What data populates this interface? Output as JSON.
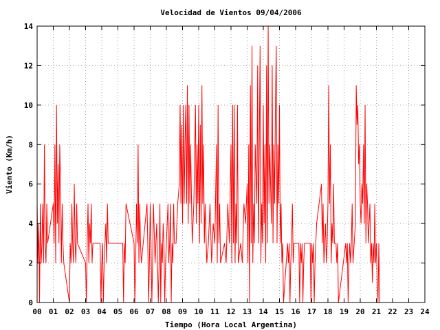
{
  "chart_data": {
    "type": "line",
    "title": "Velocidad de Vientos 09/04/2006",
    "xlabel": "Tiempo (Hora Local Argentina)",
    "ylabel": "Viento (Km/h)",
    "xlim": [
      0,
      24
    ],
    "ylim": [
      0,
      14
    ],
    "x_ticks": [
      "00",
      "01",
      "02",
      "03",
      "04",
      "05",
      "06",
      "07",
      "08",
      "09",
      "10",
      "11",
      "12",
      "13",
      "14",
      "15",
      "16",
      "17",
      "18",
      "19",
      "20",
      "21",
      "22",
      "23",
      "24"
    ],
    "y_ticks": [
      0,
      2,
      4,
      6,
      8,
      10,
      12,
      14
    ],
    "grid": true,
    "series": [
      {
        "color": "#ff0000",
        "points": [
          [
            0.0,
            5
          ],
          [
            0.05,
            2
          ],
          [
            0.1,
            4
          ],
          [
            0.15,
            0
          ],
          [
            0.2,
            5
          ],
          [
            0.25,
            2
          ],
          [
            0.3,
            3
          ],
          [
            0.35,
            5
          ],
          [
            0.4,
            2
          ],
          [
            0.45,
            8
          ],
          [
            0.5,
            3
          ],
          [
            0.55,
            2
          ],
          [
            0.6,
            5
          ],
          [
            0.65,
            3
          ],
          [
            1.0,
            5
          ],
          [
            1.05,
            3
          ],
          [
            1.1,
            8
          ],
          [
            1.15,
            2
          ],
          [
            1.2,
            10
          ],
          [
            1.25,
            4
          ],
          [
            1.3,
            7
          ],
          [
            1.35,
            3
          ],
          [
            1.4,
            8
          ],
          [
            1.45,
            6
          ],
          [
            1.5,
            2
          ],
          [
            1.55,
            5
          ],
          [
            1.6,
            3
          ],
          [
            1.65,
            2
          ],
          [
            2.0,
            0
          ],
          [
            2.05,
            3
          ],
          [
            2.1,
            2
          ],
          [
            2.15,
            5
          ],
          [
            2.2,
            3
          ],
          [
            2.25,
            2
          ],
          [
            2.3,
            6
          ],
          [
            2.35,
            3
          ],
          [
            2.4,
            2
          ],
          [
            2.45,
            5
          ],
          [
            2.5,
            3
          ],
          [
            3.0,
            2
          ],
          [
            3.05,
            0
          ],
          [
            3.1,
            3
          ],
          [
            3.15,
            5
          ],
          [
            3.2,
            2
          ],
          [
            3.25,
            4
          ],
          [
            3.3,
            3
          ],
          [
            3.35,
            5
          ],
          [
            3.4,
            2
          ],
          [
            3.45,
            3
          ],
          [
            3.9,
            3
          ],
          [
            3.95,
            0
          ],
          [
            4.0,
            2
          ],
          [
            4.05,
            3
          ],
          [
            4.1,
            0
          ],
          [
            4.15,
            2
          ],
          [
            4.2,
            3
          ],
          [
            4.25,
            4
          ],
          [
            4.3,
            2
          ],
          [
            4.35,
            5
          ],
          [
            4.4,
            3
          ],
          [
            5.3,
            3
          ],
          [
            5.35,
            0
          ],
          [
            5.4,
            3
          ],
          [
            5.45,
            2
          ],
          [
            5.5,
            5
          ],
          [
            6.0,
            3
          ],
          [
            6.05,
            0
          ],
          [
            6.1,
            2
          ],
          [
            6.15,
            5
          ],
          [
            6.2,
            3
          ],
          [
            6.25,
            8
          ],
          [
            6.3,
            2
          ],
          [
            6.35,
            5
          ],
          [
            6.4,
            3
          ],
          [
            6.45,
            2
          ],
          [
            6.8,
            5
          ],
          [
            6.85,
            3
          ],
          [
            6.9,
            0
          ],
          [
            6.95,
            2
          ],
          [
            7.0,
            5
          ],
          [
            7.05,
            3
          ],
          [
            7.1,
            0
          ],
          [
            7.15,
            2
          ],
          [
            7.2,
            5
          ],
          [
            7.3,
            2
          ],
          [
            7.4,
            4
          ],
          [
            7.5,
            0
          ],
          [
            7.55,
            2
          ],
          [
            7.6,
            5
          ],
          [
            7.65,
            0
          ],
          [
            7.7,
            3
          ],
          [
            7.75,
            2
          ],
          [
            7.8,
            4
          ],
          [
            7.85,
            3
          ],
          [
            7.9,
            0
          ],
          [
            7.95,
            2
          ],
          [
            8.0,
            3
          ],
          [
            8.1,
            5
          ],
          [
            8.15,
            2
          ],
          [
            8.2,
            3
          ],
          [
            8.25,
            5
          ],
          [
            8.3,
            0
          ],
          [
            8.35,
            3
          ],
          [
            8.4,
            2
          ],
          [
            8.45,
            5
          ],
          [
            8.5,
            3
          ],
          [
            8.6,
            3
          ],
          [
            8.7,
            5
          ],
          [
            8.8,
            6
          ],
          [
            8.85,
            10
          ],
          [
            8.9,
            5
          ],
          [
            8.95,
            9
          ],
          [
            9.0,
            4
          ],
          [
            9.05,
            10
          ],
          [
            9.1,
            5
          ],
          [
            9.15,
            8
          ],
          [
            9.2,
            10
          ],
          [
            9.25,
            5
          ],
          [
            9.3,
            11
          ],
          [
            9.35,
            4
          ],
          [
            9.4,
            10
          ],
          [
            9.45,
            5
          ],
          [
            9.5,
            8
          ],
          [
            9.6,
            3
          ],
          [
            9.7,
            5
          ],
          [
            9.8,
            10
          ],
          [
            9.85,
            4
          ],
          [
            9.9,
            8
          ],
          [
            9.95,
            5
          ],
          [
            10.0,
            10
          ],
          [
            10.05,
            3
          ],
          [
            10.1,
            9
          ],
          [
            10.15,
            4
          ],
          [
            10.2,
            11
          ],
          [
            10.25,
            5
          ],
          [
            10.3,
            8
          ],
          [
            10.35,
            3
          ],
          [
            10.4,
            5
          ],
          [
            10.5,
            2
          ],
          [
            10.6,
            3
          ],
          [
            10.7,
            5
          ],
          [
            10.8,
            2
          ],
          [
            10.9,
            4
          ],
          [
            11.0,
            3
          ],
          [
            11.1,
            8
          ],
          [
            11.15,
            2
          ],
          [
            11.2,
            10
          ],
          [
            11.25,
            3
          ],
          [
            11.3,
            5
          ],
          [
            11.35,
            2
          ],
          [
            11.6,
            3
          ],
          [
            11.7,
            2
          ],
          [
            11.8,
            5
          ],
          [
            11.9,
            3
          ],
          [
            12.0,
            8
          ],
          [
            12.05,
            2
          ],
          [
            12.1,
            10
          ],
          [
            12.15,
            3
          ],
          [
            12.2,
            10
          ],
          [
            12.25,
            2
          ],
          [
            12.3,
            5
          ],
          [
            12.35,
            3
          ],
          [
            12.4,
            10
          ],
          [
            12.45,
            2
          ],
          [
            12.6,
            3
          ],
          [
            12.7,
            2
          ],
          [
            12.8,
            5
          ],
          [
            12.9,
            4
          ],
          [
            13.0,
            6
          ],
          [
            13.05,
            2
          ],
          [
            13.1,
            8
          ],
          [
            13.15,
            0
          ],
          [
            13.2,
            11
          ],
          [
            13.25,
            3
          ],
          [
            13.3,
            13
          ],
          [
            13.35,
            2
          ],
          [
            13.4,
            5
          ],
          [
            13.45,
            3
          ],
          [
            13.5,
            8
          ],
          [
            13.6,
            5
          ],
          [
            13.65,
            12
          ],
          [
            13.7,
            3
          ],
          [
            13.75,
            8
          ],
          [
            13.8,
            13
          ],
          [
            13.85,
            2
          ],
          [
            13.9,
            5
          ],
          [
            13.95,
            3
          ],
          [
            14.0,
            10
          ],
          [
            14.05,
            4
          ],
          [
            14.1,
            8
          ],
          [
            14.15,
            2
          ],
          [
            14.2,
            12
          ],
          [
            14.25,
            3
          ],
          [
            14.3,
            14
          ],
          [
            14.35,
            5
          ],
          [
            14.4,
            8
          ],
          [
            14.5,
            4
          ],
          [
            14.55,
            12
          ],
          [
            14.6,
            3
          ],
          [
            14.65,
            8
          ],
          [
            14.7,
            5
          ],
          [
            14.75,
            10
          ],
          [
            14.8,
            13
          ],
          [
            14.85,
            3
          ],
          [
            14.9,
            8
          ],
          [
            14.95,
            5
          ],
          [
            15.0,
            10
          ],
          [
            15.05,
            3
          ],
          [
            15.1,
            5
          ],
          [
            15.15,
            2
          ],
          [
            15.2,
            3
          ],
          [
            15.25,
            0
          ],
          [
            15.5,
            3
          ],
          [
            15.55,
            2
          ],
          [
            15.6,
            3
          ],
          [
            15.65,
            0
          ],
          [
            15.7,
            2
          ],
          [
            15.75,
            3
          ],
          [
            15.8,
            5
          ],
          [
            15.85,
            2
          ],
          [
            15.9,
            3
          ],
          [
            16.2,
            3
          ],
          [
            16.25,
            0
          ],
          [
            16.3,
            3
          ],
          [
            16.35,
            2
          ],
          [
            16.4,
            3
          ],
          [
            16.45,
            0
          ],
          [
            16.5,
            2
          ],
          [
            16.55,
            3
          ],
          [
            16.9,
            3
          ],
          [
            16.95,
            0
          ],
          [
            17.0,
            3
          ],
          [
            17.05,
            2
          ],
          [
            17.1,
            3
          ],
          [
            17.15,
            0
          ],
          [
            17.2,
            2
          ],
          [
            17.25,
            3
          ],
          [
            17.3,
            4
          ],
          [
            17.6,
            6
          ],
          [
            17.65,
            3
          ],
          [
            17.7,
            5
          ],
          [
            17.75,
            2
          ],
          [
            17.8,
            3
          ],
          [
            17.85,
            4
          ],
          [
            17.9,
            2
          ],
          [
            17.95,
            3
          ],
          [
            18.0,
            5
          ],
          [
            18.05,
            11
          ],
          [
            18.1,
            5
          ],
          [
            18.15,
            8
          ],
          [
            18.2,
            2
          ],
          [
            18.25,
            4
          ],
          [
            18.3,
            3
          ],
          [
            18.35,
            6
          ],
          [
            18.4,
            3
          ],
          [
            18.5,
            3
          ],
          [
            18.55,
            2
          ],
          [
            18.6,
            3
          ],
          [
            18.65,
            0
          ],
          [
            19.1,
            3
          ],
          [
            19.15,
            2
          ],
          [
            19.2,
            3
          ],
          [
            19.25,
            0
          ],
          [
            19.3,
            2
          ],
          [
            19.35,
            3
          ],
          [
            19.4,
            2
          ],
          [
            19.45,
            3
          ],
          [
            19.5,
            5
          ],
          [
            19.55,
            2
          ],
          [
            19.7,
            4
          ],
          [
            19.75,
            11
          ],
          [
            19.8,
            9
          ],
          [
            19.85,
            10
          ],
          [
            19.9,
            7
          ],
          [
            19.95,
            8
          ],
          [
            20.0,
            5
          ],
          [
            20.05,
            4
          ],
          [
            20.1,
            6
          ],
          [
            20.15,
            5
          ],
          [
            20.2,
            8
          ],
          [
            20.25,
            4
          ],
          [
            20.3,
            10
          ],
          [
            20.35,
            3
          ],
          [
            20.4,
            6
          ],
          [
            20.45,
            5
          ],
          [
            20.5,
            3
          ],
          [
            20.6,
            5
          ],
          [
            20.65,
            2
          ],
          [
            20.7,
            3
          ],
          [
            20.75,
            1
          ],
          [
            20.8,
            3
          ],
          [
            20.85,
            2
          ],
          [
            20.9,
            5
          ],
          [
            20.95,
            2
          ],
          [
            21.0,
            3
          ],
          [
            21.05,
            1
          ],
          [
            21.1,
            0
          ],
          [
            21.15,
            3
          ],
          [
            21.2,
            0
          ]
        ]
      }
    ]
  }
}
